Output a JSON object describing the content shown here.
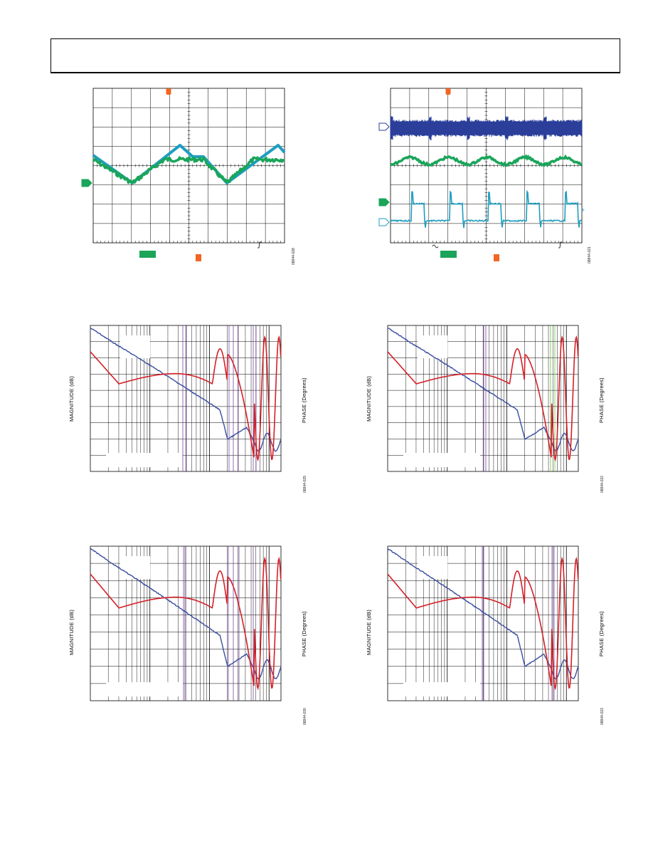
{
  "header": {},
  "labels": {
    "magnitude": "MAGNITUDE (dB)",
    "phase": "PHASE (Degrees)"
  },
  "figure_codes": {
    "scope_left": "08844-028",
    "scope_right": "08844-021",
    "bode_mid_left": "08844-029",
    "bode_mid_right": "08844-022",
    "bode_bot_left": "08844-030",
    "bode_bot_right": "08844-023"
  },
  "colors": {
    "grid": "#000000",
    "trace_green": "#1aa55a",
    "trace_cyan": "#1e9ec0",
    "trace_navy": "#2a3f9a",
    "marker_orange": "#f26522",
    "bode_magnitude": "#3a4fa0",
    "bode_phase": "#d42027",
    "marker_purple": "#7a4a9e",
    "marker_lime": "#6fbf3f"
  }
}
